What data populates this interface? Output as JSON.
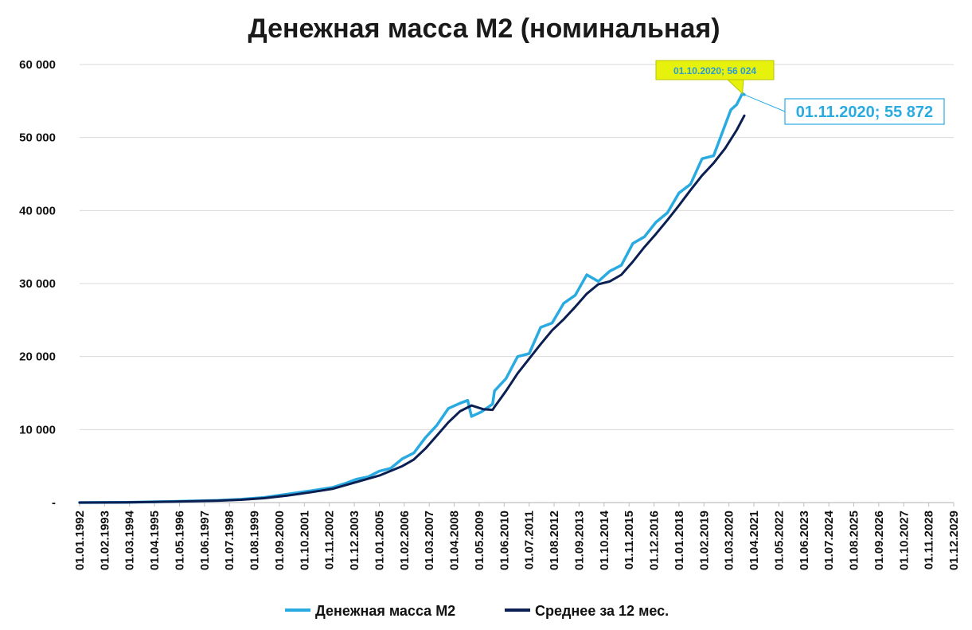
{
  "chart_data": {
    "type": "line",
    "title": "Денежная масса М2 (номинальная)",
    "xlabel": "",
    "ylabel": "",
    "ylim": [
      0,
      60000
    ],
    "y_ticks": [
      {
        "value": 0,
        "label": "-"
      },
      {
        "value": 10000,
        "label": "10 000"
      },
      {
        "value": 20000,
        "label": "20 000"
      },
      {
        "value": 30000,
        "label": "30 000"
      },
      {
        "value": 40000,
        "label": "40 000"
      },
      {
        "value": 50000,
        "label": "50 000"
      },
      {
        "value": 60000,
        "label": "60 000"
      }
    ],
    "x_range": [
      "1992-01",
      "2029-12"
    ],
    "x_tick_labels": [
      "01.01.1992",
      "01.02.1993",
      "01.03.1994",
      "01.04.1995",
      "01.05.1996",
      "01.06.1997",
      "01.07.1998",
      "01.08.1999",
      "01.09.2000",
      "01.10.2001",
      "01.11.2002",
      "01.12.2003",
      "01.01.2005",
      "01.02.2006",
      "01.03.2007",
      "01.04.2008",
      "01.05.2009",
      "01.06.2010",
      "01.07.2011",
      "01.08.2012",
      "01.09.2013",
      "01.10.2014",
      "01.11.2015",
      "01.12.2016",
      "01.01.2018",
      "01.02.2019",
      "01.03.2020",
      "01.04.2021",
      "01.05.2022",
      "01.06.2023",
      "01.07.2024",
      "01.08.2025",
      "01.09.2026",
      "01.10.2027",
      "01.11.2028",
      "01.12.2029"
    ],
    "grid": "horizontal",
    "legend_position": "bottom",
    "series": [
      {
        "name": "Денежная масса М2",
        "color": "#29abe2",
        "points": [
          [
            "1992-01",
            0
          ],
          [
            "1994-01",
            30
          ],
          [
            "1996-01",
            150
          ],
          [
            "1998-01",
            300
          ],
          [
            "1999-01",
            450
          ],
          [
            "2000-01",
            700
          ],
          [
            "2001-01",
            1150
          ],
          [
            "2002-01",
            1600
          ],
          [
            "2003-01",
            2100
          ],
          [
            "2003-07",
            2600
          ],
          [
            "2004-01",
            3200
          ],
          [
            "2004-07",
            3500
          ],
          [
            "2005-01",
            4300
          ],
          [
            "2005-07",
            4700
          ],
          [
            "2006-01",
            6000
          ],
          [
            "2006-07",
            6800
          ],
          [
            "2007-01",
            8900
          ],
          [
            "2007-07",
            10600
          ],
          [
            "2008-01",
            12900
          ],
          [
            "2008-07",
            13600
          ],
          [
            "2008-11",
            14000
          ],
          [
            "2009-01",
            11800
          ],
          [
            "2009-06",
            12400
          ],
          [
            "2009-12",
            13500
          ],
          [
            "2010-01",
            15300
          ],
          [
            "2010-07",
            17000
          ],
          [
            "2011-01",
            20000
          ],
          [
            "2011-07",
            20400
          ],
          [
            "2012-01",
            24000
          ],
          [
            "2012-07",
            24600
          ],
          [
            "2013-01",
            27300
          ],
          [
            "2013-07",
            28400
          ],
          [
            "2014-01",
            31200
          ],
          [
            "2014-07",
            30300
          ],
          [
            "2015-01",
            31700
          ],
          [
            "2015-07",
            32500
          ],
          [
            "2016-01",
            35500
          ],
          [
            "2016-07",
            36400
          ],
          [
            "2017-01",
            38400
          ],
          [
            "2017-07",
            39700
          ],
          [
            "2018-01",
            42400
          ],
          [
            "2018-07",
            43600
          ],
          [
            "2019-01",
            47100
          ],
          [
            "2019-07",
            47500
          ],
          [
            "2020-01",
            51700
          ],
          [
            "2020-04",
            53800
          ],
          [
            "2020-07",
            54500
          ],
          [
            "2020-10",
            56024
          ],
          [
            "2020-11",
            55872
          ]
        ]
      },
      {
        "name": "Среднее за 12 мес.",
        "color": "#0b1f52",
        "points": [
          [
            "1992-01",
            0
          ],
          [
            "1994-01",
            20
          ],
          [
            "1996-01",
            120
          ],
          [
            "1998-01",
            260
          ],
          [
            "1999-01",
            380
          ],
          [
            "2000-01",
            600
          ],
          [
            "2001-01",
            950
          ],
          [
            "2002-01",
            1400
          ],
          [
            "2003-01",
            1900
          ],
          [
            "2004-01",
            2800
          ],
          [
            "2005-01",
            3700
          ],
          [
            "2006-01",
            5000
          ],
          [
            "2006-07",
            5900
          ],
          [
            "2007-01",
            7400
          ],
          [
            "2007-07",
            9200
          ],
          [
            "2008-01",
            11000
          ],
          [
            "2008-07",
            12500
          ],
          [
            "2009-01",
            13300
          ],
          [
            "2009-07",
            12800
          ],
          [
            "2009-12",
            12700
          ],
          [
            "2010-01",
            13100
          ],
          [
            "2010-07",
            15300
          ],
          [
            "2011-01",
            17700
          ],
          [
            "2011-07",
            19700
          ],
          [
            "2012-01",
            21700
          ],
          [
            "2012-07",
            23600
          ],
          [
            "2013-01",
            25100
          ],
          [
            "2013-07",
            26800
          ],
          [
            "2014-01",
            28600
          ],
          [
            "2014-07",
            29900
          ],
          [
            "2015-01",
            30300
          ],
          [
            "2015-07",
            31200
          ],
          [
            "2016-01",
            33000
          ],
          [
            "2016-07",
            35000
          ],
          [
            "2017-01",
            36800
          ],
          [
            "2017-07",
            38700
          ],
          [
            "2018-01",
            40700
          ],
          [
            "2018-07",
            42800
          ],
          [
            "2019-01",
            44800
          ],
          [
            "2019-07",
            46500
          ],
          [
            "2020-01",
            48500
          ],
          [
            "2020-07",
            51000
          ],
          [
            "2020-11",
            53000
          ]
        ]
      }
    ],
    "annotations": [
      {
        "date": "2020-10",
        "value": 56024,
        "text": "01.10.2020;  56 024",
        "bg": "#e6f20c",
        "fg": "#2b9bd6"
      },
      {
        "date": "2020-11",
        "value": 55872,
        "text": "01.11.2020;  55 872",
        "bg": "#ffffff",
        "fg": "#29abe2"
      }
    ]
  }
}
